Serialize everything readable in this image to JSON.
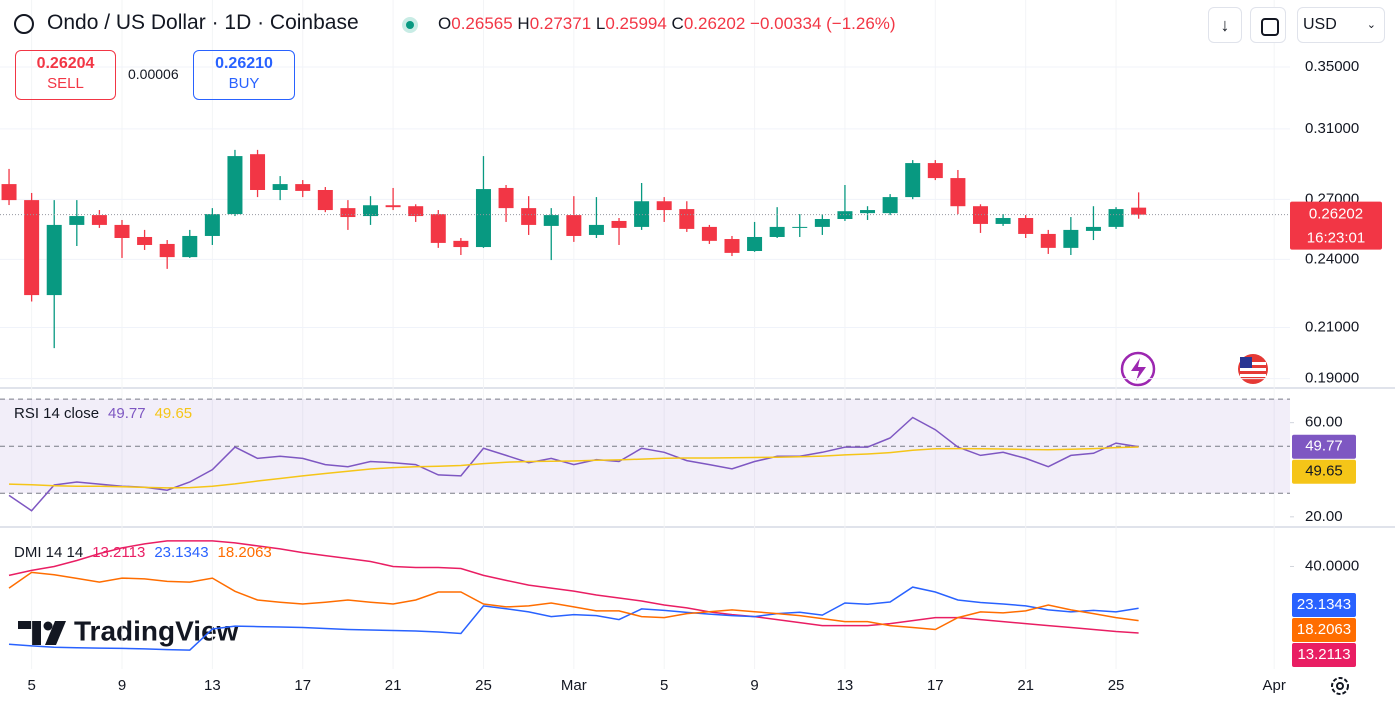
{
  "header": {
    "title": "Ondo / US Dollar · 1D · Coinbase",
    "ohlc_labels": [
      "O",
      "H",
      "L",
      "C"
    ],
    "change": "−0.00334 (−1.26%)",
    "currency": "USD",
    "sell": {
      "price": "0.26204",
      "label": "SELL"
    },
    "spread": "0.00006",
    "buy": {
      "price": "0.26210",
      "label": "BUY"
    }
  },
  "watermark": "TradingView",
  "chart_data": [
    {
      "type": "candlestick",
      "log_scale": true,
      "grid": true,
      "up_color": "#089981",
      "down_color": "#f23645",
      "countdown": "16:23:01",
      "open": [
        0.2782,
        0.2696,
        0.2238,
        0.2568,
        0.2618,
        0.2568,
        0.2508,
        0.2474,
        0.2411,
        0.2513,
        0.2623,
        0.295,
        0.275,
        0.2782,
        0.275,
        0.2654,
        0.2613,
        0.2669,
        0.2664,
        0.2623,
        0.2489,
        0.2459,
        0.2761,
        0.2654,
        0.2563,
        0.2618,
        0.2518,
        0.2588,
        0.2558,
        0.269,
        0.2649,
        0.2558,
        0.2498,
        0.244,
        0.2508,
        0.2553,
        0.2558,
        0.2598,
        0.2628,
        0.2628,
        0.2712,
        0.2899,
        0.2815,
        0.2664,
        0.2573,
        0.2603,
        0.2523,
        0.2455,
        0.2538,
        0.2558,
        0.26565
      ],
      "high": [
        0.2866,
        0.2734,
        0.2696,
        0.2696,
        0.2644,
        0.2593,
        0.2543,
        0.2493,
        0.2543,
        0.2654,
        0.2975,
        0.2975,
        0.2826,
        0.2804,
        0.2766,
        0.2696,
        0.2717,
        0.2761,
        0.2674,
        0.2644,
        0.2503,
        0.2939,
        0.2777,
        0.2717,
        0.2654,
        0.2717,
        0.2712,
        0.2603,
        0.2788,
        0.2712,
        0.269,
        0.2568,
        0.2513,
        0.2583,
        0.2659,
        0.2623,
        0.2623,
        0.2777,
        0.2664,
        0.2728,
        0.2916,
        0.2916,
        0.286,
        0.2674,
        0.2623,
        0.2618,
        0.2543,
        0.2608,
        0.2664,
        0.2659,
        0.27371
      ],
      "low": [
        0.267,
        0.221,
        0.2017,
        0.2464,
        0.2553,
        0.2407,
        0.2445,
        0.2356,
        0.2407,
        0.2469,
        0.2613,
        0.2712,
        0.2696,
        0.2712,
        0.2633,
        0.2543,
        0.2568,
        0.2644,
        0.2583,
        0.2455,
        0.2421,
        0.2455,
        0.2583,
        0.2518,
        0.2397,
        0.2484,
        0.2503,
        0.2469,
        0.2543,
        0.2583,
        0.2533,
        0.2474,
        0.2416,
        0.2436,
        0.2503,
        0.2508,
        0.2518,
        0.2588,
        0.2593,
        0.2618,
        0.2701,
        0.2804,
        0.2623,
        0.2528,
        0.2563,
        0.2503,
        0.2426,
        0.2421,
        0.2493,
        0.2548,
        0.25994
      ],
      "close": [
        0.2696,
        0.2238,
        0.2568,
        0.2613,
        0.2568,
        0.2503,
        0.2469,
        0.2411,
        0.2513,
        0.2623,
        0.2939,
        0.275,
        0.2782,
        0.2745,
        0.2644,
        0.2608,
        0.2669,
        0.2659,
        0.2613,
        0.2479,
        0.2459,
        0.2755,
        0.2654,
        0.2568,
        0.2618,
        0.2513,
        0.2568,
        0.2553,
        0.269,
        0.2644,
        0.2548,
        0.2489,
        0.2431,
        0.2508,
        0.2558,
        0.2558,
        0.2598,
        0.2638,
        0.2644,
        0.2712,
        0.2899,
        0.2815,
        0.2664,
        0.2573,
        0.2603,
        0.2523,
        0.2455,
        0.2543,
        0.2558,
        0.2649,
        0.26202
      ],
      "ylim": [
        0.1869,
        0.3991
      ],
      "yticks": [
        {
          "value": 0.35,
          "label": "0.35000"
        },
        {
          "value": 0.31,
          "label": "0.31000"
        },
        {
          "value": 0.27,
          "label": "0.27000"
        },
        {
          "value": 0.24,
          "label": "0.24000"
        },
        {
          "value": 0.21,
          "label": "0.21000"
        },
        {
          "value": 0.19,
          "label": "0.19000"
        }
      ],
      "xlim": [
        -0.4,
        56.7
      ],
      "xticks": [
        {
          "value": 1,
          "label": "5"
        },
        {
          "value": 5,
          "label": "9"
        },
        {
          "value": 9,
          "label": "13"
        },
        {
          "value": 13,
          "label": "17"
        },
        {
          "value": 17,
          "label": "21"
        },
        {
          "value": 21,
          "label": "25"
        },
        {
          "value": 25,
          "label": "Mar"
        },
        {
          "value": 29,
          "label": "5"
        },
        {
          "value": 33,
          "label": "9"
        },
        {
          "value": 37,
          "label": "13"
        },
        {
          "value": 41,
          "label": "17"
        },
        {
          "value": 45,
          "label": "21"
        },
        {
          "value": 49,
          "label": "25"
        },
        {
          "value": 56,
          "label": "Apr"
        }
      ]
    },
    {
      "type": "line",
      "title": "RSI 14 close",
      "bands": [
        30,
        50,
        70
      ],
      "band_color": "#7e57c2",
      "series": [
        {
          "color": "#7e57c2",
          "values": [
            29.1,
            22.6,
            33.5,
            34.8,
            33.9,
            33.0,
            32.6,
            31.3,
            34.8,
            40.0,
            49.6,
            44.8,
            45.7,
            44.8,
            42.2,
            41.3,
            43.5,
            43.0,
            42.2,
            37.8,
            37.4,
            49.1,
            46.1,
            43.0,
            44.8,
            42.2,
            44.3,
            43.5,
            49.1,
            47.4,
            43.9,
            42.2,
            40.4,
            43.5,
            45.7,
            45.7,
            47.4,
            49.6,
            49.6,
            53.5,
            62.2,
            57.0,
            49.6,
            46.1,
            47.4,
            44.8,
            41.3,
            46.1,
            47.0,
            51.3,
            49.77
          ]
        },
        {
          "color": "#f5c518",
          "values": [
            33.9,
            33.6,
            33.2,
            33.0,
            33.0,
            32.8,
            32.5,
            32.3,
            32.4,
            33.0,
            34.0,
            35.2,
            36.3,
            37.4,
            38.4,
            39.4,
            40.3,
            40.9,
            41.3,
            41.5,
            41.8,
            42.6,
            43.2,
            43.5,
            43.6,
            43.7,
            44.0,
            44.2,
            44.5,
            44.9,
            45.0,
            45.0,
            45.1,
            45.2,
            45.3,
            45.5,
            45.8,
            46.3,
            46.7,
            47.3,
            48.3,
            48.9,
            49.0,
            48.9,
            48.8,
            48.6,
            48.5,
            48.7,
            49.0,
            49.4,
            49.65
          ]
        }
      ],
      "ylim": [
        16.1,
        74.3
      ],
      "yticks": [
        {
          "value": 60,
          "label": "60.00"
        },
        {
          "value": 20,
          "label": "20.00"
        }
      ]
    },
    {
      "type": "line",
      "title": "DMI 14 14",
      "series": [
        {
          "color": "#e91e63",
          "values": [
            36.4,
            38.4,
            40.0,
            42.4,
            45.2,
            47.5,
            49.1,
            50.3,
            50.3,
            50.3,
            49.5,
            48.3,
            47.1,
            45.6,
            44.4,
            43.2,
            42.0,
            40.0,
            39.6,
            39.6,
            39.2,
            36.4,
            34.4,
            32.5,
            31.3,
            30.1,
            28.5,
            27.3,
            26.1,
            24.5,
            23.3,
            21.7,
            20.6,
            19.8,
            18.6,
            17.4,
            16.2,
            16.2,
            16.2,
            17.0,
            18.2,
            19.4,
            19.4,
            18.6,
            17.8,
            17.0,
            16.2,
            15.4,
            14.6,
            13.8,
            13.2113
          ]
        },
        {
          "color": "#2962ff",
          "values": [
            8.7,
            8.0,
            7.5,
            7.3,
            7.1,
            7.0,
            6.8,
            6.5,
            6.3,
            14.8,
            16.0,
            15.8,
            15.6,
            15.4,
            15.0,
            14.6,
            14.4,
            14.2,
            14.0,
            13.6,
            13.0,
            24.1,
            23.0,
            21.7,
            19.8,
            20.6,
            20.2,
            18.6,
            22.9,
            22.3,
            21.5,
            20.8,
            20.2,
            19.8,
            21.0,
            21.6,
            20.4,
            25.3,
            24.8,
            25.7,
            31.7,
            29.7,
            26.5,
            25.5,
            24.9,
            24.1,
            22.5,
            21.7,
            22.3,
            21.7,
            23.1343
          ]
        },
        {
          "color": "#ff6d00",
          "values": [
            31.3,
            37.6,
            36.7,
            35.2,
            33.7,
            35.3,
            35.0,
            34.0,
            33.7,
            35.3,
            30.0,
            26.5,
            25.6,
            24.9,
            25.6,
            26.5,
            25.6,
            24.9,
            26.5,
            29.7,
            29.7,
            24.9,
            23.7,
            24.1,
            25.3,
            23.7,
            22.1,
            22.1,
            19.8,
            19.4,
            21.0,
            21.8,
            22.5,
            21.8,
            21.0,
            20.2,
            19.0,
            17.8,
            17.8,
            16.2,
            15.4,
            14.6,
            19.4,
            21.7,
            21.3,
            22.1,
            24.5,
            22.5,
            21.0,
            19.4,
            18.2063
          ]
        }
      ],
      "ylim": [
        -1.3,
        55.5
      ],
      "yticks": [
        {
          "value": 40,
          "label": "40.0000"
        }
      ]
    }
  ]
}
